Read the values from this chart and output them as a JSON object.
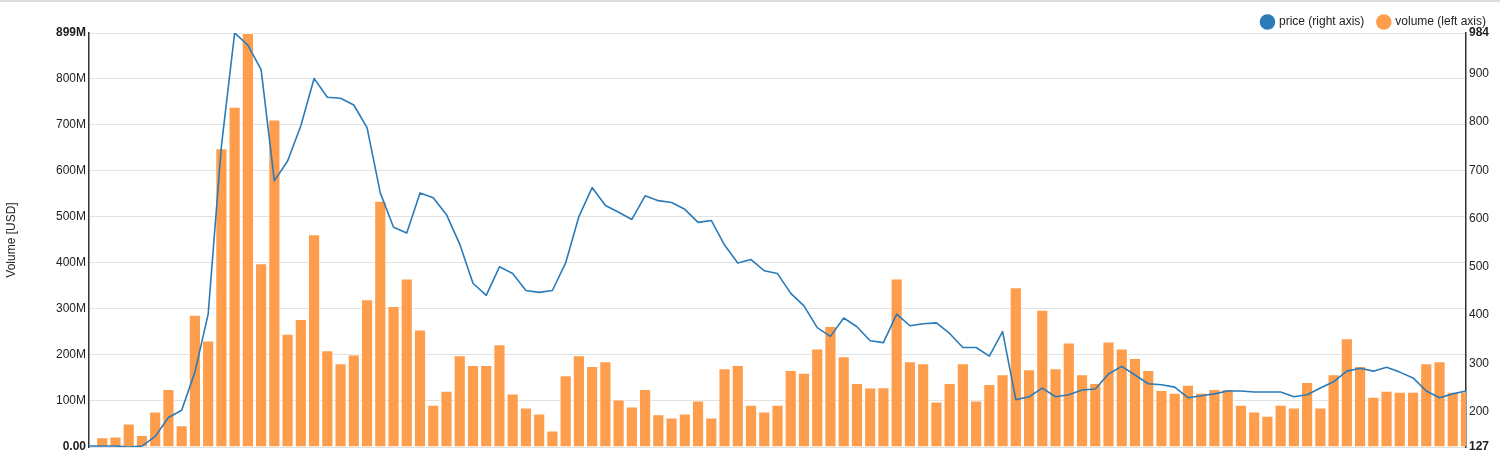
{
  "chart_data": {
    "type": "bar",
    "ylabel": "Volume [USD]",
    "legend": "top right",
    "grid": "y",
    "categories": [
      null,
      null,
      null,
      null,
      null,
      null,
      null,
      null,
      null,
      null,
      null,
      null,
      null,
      null,
      null,
      null,
      null,
      null,
      null,
      null,
      null,
      null,
      null,
      null,
      null,
      null,
      null,
      null,
      null,
      null,
      null,
      null,
      null,
      null,
      null,
      null,
      null,
      null,
      null,
      null,
      null,
      null,
      null,
      null,
      null,
      null,
      null,
      null,
      null,
      null,
      null,
      null,
      null,
      null,
      null,
      null,
      null,
      null,
      null,
      null,
      null,
      null,
      null,
      null,
      null,
      null,
      null,
      null,
      null,
      null,
      null,
      null,
      null,
      null,
      null,
      null,
      null,
      null,
      null,
      null,
      null,
      null,
      null,
      null,
      null,
      null,
      null,
      null,
      null,
      null,
      null,
      null,
      null,
      null,
      null,
      null,
      null,
      null,
      null,
      null,
      null,
      null,
      null,
      null,
      null
    ],
    "ylim": [
      0,
      899
    ],
    "yticks": [
      {
        "value": 0,
        "label": "0.00"
      },
      {
        "value": 100,
        "label": "100M"
      },
      {
        "value": 200,
        "label": "200M"
      },
      {
        "value": 300,
        "label": "300M"
      },
      {
        "value": 400,
        "label": "400M"
      },
      {
        "value": 500,
        "label": "500M"
      },
      {
        "value": 600,
        "label": "600M"
      },
      {
        "value": 700,
        "label": "700M"
      },
      {
        "value": 800,
        "label": "800M"
      },
      {
        "value": 899,
        "label": "899M"
      }
    ],
    "y2lim": [
      127,
      984
    ],
    "y2ticks": [
      127,
      200,
      300,
      400,
      500,
      600,
      700,
      800,
      900,
      984
    ],
    "series": [
      {
        "name": "price (right axis)",
        "type": "line",
        "axis": "y2",
        "color": "#2b7bb9",
        "values": [
          129,
          129,
          129,
          127,
          129,
          149,
          188,
          203,
          282,
          402,
          750,
          984,
          959,
          908,
          678,
          719,
          792,
          890,
          851,
          849,
          835,
          788,
          653,
          582,
          570,
          653,
          643,
          608,
          547,
          466,
          441,
          500,
          486,
          451,
          447,
          451,
          508,
          604,
          664,
          627,
          613,
          598,
          647,
          637,
          633,
          619,
          592,
          596,
          545,
          508,
          515,
          492,
          486,
          445,
          419,
          374,
          356,
          394,
          376,
          347,
          343,
          402,
          378,
          382,
          384,
          362,
          333,
          333,
          315,
          366,
          225,
          231,
          249,
          231,
          235,
          245,
          247,
          278,
          294,
          276,
          258,
          256,
          251,
          229,
          233,
          237,
          243,
          243,
          241,
          241,
          241,
          231,
          235,
          249,
          262,
          284,
          290,
          284,
          292,
          282,
          270,
          243,
          229,
          237,
          243
        ]
      },
      {
        "name": "volume (left axis)",
        "color": "#fe9d4c",
        "values": [
          2,
          21,
          23,
          51,
          26,
          77,
          126,
          47,
          287,
          231,
          649,
          739,
          899,
          399,
          711,
          246,
          278,
          462,
          210,
          182,
          201,
          321,
          535,
          306,
          366,
          255,
          92,
          122,
          199,
          178,
          178,
          223,
          116,
          86,
          73,
          36,
          156,
          199,
          176,
          186,
          103,
          88,
          126,
          71,
          64,
          73,
          101,
          64,
          171,
          178,
          92,
          77,
          92,
          167,
          161,
          214,
          263,
          197,
          139,
          129,
          130,
          366,
          186,
          182,
          99,
          139,
          182,
          101,
          137,
          158,
          347,
          169,
          298,
          171,
          227,
          158,
          139,
          229,
          214,
          193,
          167,
          124,
          118,
          135,
          118,
          126,
          126,
          92,
          77,
          68,
          92,
          86,
          141,
          86,
          158,
          236,
          176,
          109,
          122,
          120,
          120,
          182,
          186,
          120,
          120
        ]
      }
    ]
  }
}
